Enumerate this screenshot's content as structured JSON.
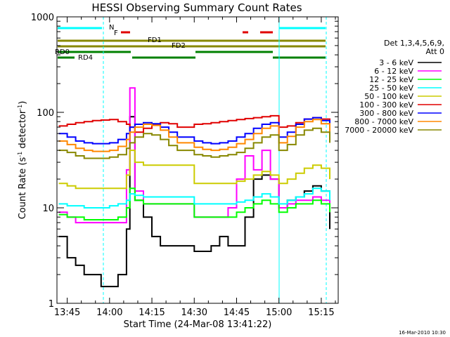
{
  "chart_data": {
    "type": "line",
    "title": "HESSI Observing Summary Count Rates",
    "xlabel": "Start Time (24-Mar-08 13:41:22)",
    "ylabel": "Count Rate (s⁻¹ detector⁻¹)",
    "ylabel_parts": [
      "Count Rate (s",
      "-1",
      " detector",
      "-1",
      ")"
    ],
    "yscale": "log",
    "ylim": [
      1,
      1000
    ],
    "xlim": [
      13.6894,
      15.35
    ],
    "x_unit": "decimal hours UT",
    "x_ticks": [
      {
        "value": 13.75,
        "label": "13:45"
      },
      {
        "value": 14.0,
        "label": "14:00"
      },
      {
        "value": 14.25,
        "label": "14:15"
      },
      {
        "value": 14.5,
        "label": "14:30"
      },
      {
        "value": 14.75,
        "label": "14:45"
      },
      {
        "value": 15.0,
        "label": "15:00"
      },
      {
        "value": 15.25,
        "label": "15:15"
      }
    ],
    "y_ticks": [
      {
        "value": 1,
        "label": "1"
      },
      {
        "value": 10,
        "label": "10"
      },
      {
        "value": 100,
        "label": "100"
      },
      {
        "value": 1000,
        "label": "1000"
      }
    ],
    "legend": {
      "placement": "right",
      "header": [
        "Det 1,3,4,5,6,9,",
        "Att 0"
      ],
      "entries": [
        {
          "label": "3 - 6 keV",
          "color": "#000000"
        },
        {
          "label": "6 - 12 keV",
          "color": "#ff00ff"
        },
        {
          "label": "12 - 25 keV",
          "color": "#00ff00"
        },
        {
          "label": "25 - 50 keV",
          "color": "#00ffff"
        },
        {
          "label": "50 - 100 keV",
          "color": "#cccc00"
        },
        {
          "label": "100 - 300 keV",
          "color": "#e00000"
        },
        {
          "label": "300 - 800 keV",
          "color": "#0000ff"
        },
        {
          "label": "800 - 7000 keV",
          "color": "#ff8800"
        },
        {
          "label": "7000 - 20000 keV",
          "color": "#888800"
        }
      ]
    },
    "series": [
      {
        "name": "3 - 6 keV",
        "color": "#000000",
        "x": [
          13.7,
          13.75,
          13.8,
          13.85,
          13.9,
          13.95,
          14.0,
          14.05,
          14.1,
          14.12,
          14.15,
          14.2,
          14.25,
          14.3,
          14.35,
          14.4,
          14.5,
          14.55,
          14.6,
          14.65,
          14.7,
          14.75,
          14.8,
          14.85,
          14.9,
          14.95,
          15.0,
          15.05,
          15.1,
          15.15,
          15.2,
          15.25,
          15.3
        ],
        "y": [
          5,
          3,
          2.5,
          2,
          2,
          1.5,
          1.5,
          2,
          6,
          90,
          12,
          8,
          5,
          4,
          4,
          4,
          3.5,
          3.5,
          4,
          5,
          4,
          4,
          8,
          20,
          22,
          20,
          10,
          12,
          13,
          15,
          17,
          15,
          6
        ]
      },
      {
        "name": "6 - 12 keV",
        "color": "#ff00ff",
        "x": [
          13.7,
          13.75,
          13.8,
          13.85,
          13.9,
          13.95,
          14.0,
          14.05,
          14.1,
          14.12,
          14.15,
          14.2,
          14.25,
          14.3,
          14.35,
          14.4,
          14.5,
          14.55,
          14.6,
          14.65,
          14.7,
          14.75,
          14.8,
          14.85,
          14.9,
          14.95,
          15.0,
          15.05,
          15.1,
          15.15,
          15.2,
          15.25,
          15.3
        ],
        "y": [
          9,
          8,
          7,
          7,
          7,
          7,
          7,
          7,
          25,
          180,
          15,
          11,
          11,
          11,
          11,
          11,
          8,
          8,
          8,
          8,
          10,
          20,
          35,
          25,
          40,
          20,
          10,
          11,
          12,
          12,
          13,
          12,
          9
        ]
      },
      {
        "name": "12 - 25 keV",
        "color": "#00ff00",
        "x": [
          13.7,
          13.75,
          13.8,
          13.85,
          13.9,
          13.95,
          14.0,
          14.05,
          14.1,
          14.12,
          14.15,
          14.2,
          14.25,
          14.3,
          14.35,
          14.4,
          14.5,
          14.55,
          14.6,
          14.65,
          14.7,
          14.75,
          14.8,
          14.85,
          14.9,
          14.95,
          15.0,
          15.05,
          15.1,
          15.15,
          15.2,
          15.25,
          15.3
        ],
        "y": [
          8.5,
          8,
          8,
          7.5,
          7.5,
          7.5,
          7.5,
          8,
          10,
          16,
          12,
          11,
          11,
          11,
          11,
          11,
          8,
          8,
          8,
          8,
          8,
          9,
          10,
          11,
          12,
          11,
          9,
          10,
          11,
          11,
          12,
          11,
          9
        ]
      },
      {
        "name": "25 - 50 keV",
        "color": "#00ffff",
        "x": [
          13.7,
          13.75,
          13.8,
          13.85,
          13.9,
          13.95,
          14.0,
          14.05,
          14.1,
          14.12,
          14.15,
          14.2,
          14.25,
          14.3,
          14.35,
          14.4,
          14.5,
          14.55,
          14.6,
          14.65,
          14.7,
          14.75,
          14.8,
          14.85,
          14.9,
          14.95,
          15.0,
          15.05,
          15.1,
          15.15,
          15.2,
          15.25,
          15.3
        ],
        "y": [
          11,
          10.5,
          10.5,
          10,
          10,
          10,
          10.5,
          11,
          12,
          14,
          13.5,
          13,
          13,
          13,
          13,
          13,
          11,
          11,
          11,
          11,
          11,
          11.5,
          12,
          13,
          14,
          13,
          11,
          12,
          13,
          14,
          16,
          15,
          12
        ]
      },
      {
        "name": "50 - 100 keV",
        "color": "#cccc00",
        "x": [
          13.7,
          13.75,
          13.8,
          13.85,
          13.9,
          13.95,
          14.0,
          14.05,
          14.1,
          14.12,
          14.15,
          14.2,
          14.25,
          14.3,
          14.35,
          14.4,
          14.5,
          14.55,
          14.6,
          14.65,
          14.7,
          14.75,
          14.8,
          14.85,
          14.9,
          14.95,
          15.0,
          15.05,
          15.1,
          15.15,
          15.2,
          15.25,
          15.3
        ],
        "y": [
          18,
          17,
          16,
          16,
          16,
          16,
          16,
          16,
          22,
          40,
          30,
          28,
          28,
          28,
          28,
          28,
          18,
          18,
          18,
          18,
          18,
          19,
          20,
          22,
          24,
          22,
          18,
          20,
          23,
          26,
          28,
          26,
          20
        ]
      },
      {
        "name": "100 - 300 keV",
        "color": "#e00000",
        "x": [
          13.7,
          13.75,
          13.8,
          13.85,
          13.9,
          13.95,
          14.0,
          14.05,
          14.1,
          14.12,
          14.15,
          14.2,
          14.25,
          14.3,
          14.35,
          14.4,
          14.5,
          14.55,
          14.6,
          14.65,
          14.7,
          14.75,
          14.8,
          14.85,
          14.9,
          14.95,
          15.0,
          15.05,
          15.1,
          15.15,
          15.2,
          15.25,
          15.3
        ],
        "y": [
          72,
          75,
          78,
          80,
          82,
          83,
          84,
          80,
          75,
          70,
          62,
          68,
          75,
          78,
          76,
          70,
          75,
          76,
          78,
          80,
          82,
          84,
          86,
          88,
          90,
          92,
          70,
          72,
          78,
          85,
          88,
          85,
          70
        ]
      },
      {
        "name": "300 - 800 keV",
        "color": "#0000ff",
        "x": [
          13.7,
          13.75,
          13.8,
          13.85,
          13.9,
          13.95,
          14.0,
          14.05,
          14.1,
          14.12,
          14.15,
          14.2,
          14.25,
          14.3,
          14.35,
          14.4,
          14.5,
          14.55,
          14.6,
          14.65,
          14.7,
          14.75,
          14.8,
          14.85,
          14.9,
          14.95,
          15.0,
          15.05,
          15.1,
          15.15,
          15.2,
          15.25,
          15.3
        ],
        "y": [
          60,
          55,
          50,
          48,
          47,
          47,
          48,
          52,
          60,
          70,
          75,
          78,
          76,
          70,
          62,
          55,
          50,
          48,
          47,
          48,
          50,
          55,
          60,
          68,
          75,
          78,
          55,
          62,
          75,
          85,
          88,
          82,
          65
        ]
      },
      {
        "name": "800 - 7000 keV",
        "color": "#ff8800",
        "x": [
          13.7,
          13.75,
          13.8,
          13.85,
          13.9,
          13.95,
          14.0,
          14.05,
          14.1,
          14.12,
          14.15,
          14.2,
          14.25,
          14.3,
          14.35,
          14.4,
          14.5,
          14.55,
          14.6,
          14.65,
          14.7,
          14.75,
          14.8,
          14.85,
          14.9,
          14.95,
          15.0,
          15.05,
          15.1,
          15.15,
          15.2,
          15.25,
          15.3
        ],
        "y": [
          50,
          46,
          42,
          40,
          39,
          39,
          40,
          44,
          52,
          62,
          70,
          75,
          73,
          65,
          55,
          48,
          43,
          41,
          40,
          41,
          43,
          47,
          52,
          60,
          68,
          72,
          48,
          56,
          70,
          80,
          84,
          76,
          58
        ]
      },
      {
        "name": "7000 - 20000 keV",
        "color": "#888800",
        "x": [
          13.7,
          13.75,
          13.8,
          13.85,
          13.9,
          13.95,
          14.0,
          14.05,
          14.1,
          14.12,
          14.15,
          14.2,
          14.25,
          14.3,
          14.35,
          14.4,
          14.5,
          14.55,
          14.6,
          14.65,
          14.7,
          14.75,
          14.8,
          14.85,
          14.9,
          14.95,
          15.0,
          15.05,
          15.1,
          15.15,
          15.2,
          15.25,
          15.3
        ],
        "y": [
          40,
          38,
          35,
          33,
          33,
          33,
          34,
          36,
          42,
          48,
          55,
          60,
          58,
          52,
          45,
          40,
          36,
          35,
          34,
          35,
          36,
          38,
          42,
          48,
          55,
          58,
          40,
          46,
          58,
          65,
          68,
          62,
          48
        ]
      }
    ],
    "annotations": {
      "N": "N",
      "F": "F",
      "FD1": "FD1",
      "FD2": "FD2",
      "RD0": "RD0",
      "RD4": "RD4"
    },
    "footer_date": "16-Mar-2010 10:30"
  }
}
